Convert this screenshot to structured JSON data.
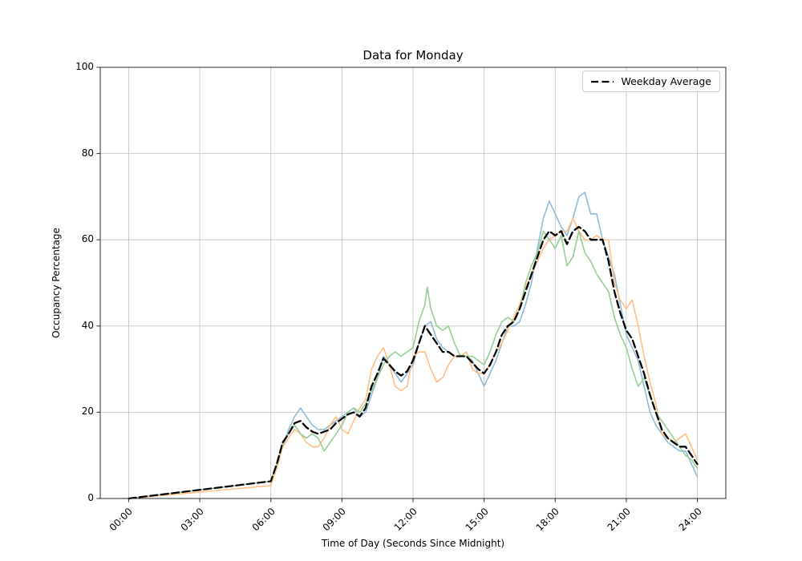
{
  "chart_data": {
    "type": "line",
    "title": "Data for Monday",
    "xlabel": "Time of Day (Seconds Since Midnight)",
    "ylabel": "Occupancy Percentage",
    "ylim": [
      0,
      100
    ],
    "x_unit": "hours",
    "xlim_hours": [
      0,
      24
    ],
    "grid": true,
    "legend_position": "upper right",
    "x_ticks": [
      {
        "hours": 0,
        "label": "00:00"
      },
      {
        "hours": 3,
        "label": "03:00"
      },
      {
        "hours": 6,
        "label": "06:00"
      },
      {
        "hours": 9,
        "label": "09:00"
      },
      {
        "hours": 12,
        "label": "12:00"
      },
      {
        "hours": 15,
        "label": "15:00"
      },
      {
        "hours": 18,
        "label": "18:00"
      },
      {
        "hours": 21,
        "label": "21:00"
      },
      {
        "hours": 24,
        "label": "24:00"
      }
    ],
    "y_ticks": [
      0,
      20,
      40,
      60,
      80,
      100
    ],
    "series": [
      {
        "name": "day-series-1",
        "color": "#8fbbd9",
        "width": 1.6,
        "dash": null,
        "in_legend": false,
        "points": [
          [
            0,
            0
          ],
          [
            6,
            4
          ],
          [
            6.25,
            8
          ],
          [
            6.5,
            12
          ],
          [
            6.75,
            16
          ],
          [
            7,
            19
          ],
          [
            7.25,
            21
          ],
          [
            7.5,
            19
          ],
          [
            7.75,
            17
          ],
          [
            8,
            16
          ],
          [
            8.25,
            16
          ],
          [
            8.5,
            17
          ],
          [
            8.75,
            18
          ],
          [
            9,
            19
          ],
          [
            9.25,
            20
          ],
          [
            9.5,
            21
          ],
          [
            9.75,
            19
          ],
          [
            10,
            20
          ],
          [
            10.25,
            24
          ],
          [
            10.5,
            28
          ],
          [
            10.75,
            33
          ],
          [
            11,
            31
          ],
          [
            11.25,
            29
          ],
          [
            11.5,
            27
          ],
          [
            11.75,
            29
          ],
          [
            12,
            31
          ],
          [
            12.25,
            36
          ],
          [
            12.5,
            40
          ],
          [
            12.75,
            41
          ],
          [
            13,
            37
          ],
          [
            13.25,
            35
          ],
          [
            13.5,
            34
          ],
          [
            13.75,
            33
          ],
          [
            14,
            33
          ],
          [
            14.25,
            33
          ],
          [
            14.5,
            32
          ],
          [
            14.75,
            29
          ],
          [
            15,
            26
          ],
          [
            15.25,
            29
          ],
          [
            15.5,
            32
          ],
          [
            15.75,
            36
          ],
          [
            16,
            40
          ],
          [
            16.25,
            40
          ],
          [
            16.5,
            41
          ],
          [
            16.75,
            45
          ],
          [
            17,
            50
          ],
          [
            17.25,
            58
          ],
          [
            17.5,
            65
          ],
          [
            17.75,
            69
          ],
          [
            18,
            66
          ],
          [
            18.25,
            63
          ],
          [
            18.5,
            61
          ],
          [
            18.75,
            65
          ],
          [
            19,
            70
          ],
          [
            19.25,
            71
          ],
          [
            19.5,
            66
          ],
          [
            19.75,
            66
          ],
          [
            20,
            60
          ],
          [
            20.25,
            56
          ],
          [
            20.5,
            52
          ],
          [
            20.75,
            45
          ],
          [
            21,
            38
          ],
          [
            21.25,
            35
          ],
          [
            21.5,
            32
          ],
          [
            21.75,
            26
          ],
          [
            22,
            20
          ],
          [
            22.25,
            17
          ],
          [
            22.5,
            15
          ],
          [
            22.75,
            13
          ],
          [
            23,
            12
          ],
          [
            23.25,
            11
          ],
          [
            23.5,
            11
          ],
          [
            23.75,
            8
          ],
          [
            24,
            5
          ]
        ]
      },
      {
        "name": "day-series-2",
        "color": "#ffbf86",
        "width": 1.6,
        "dash": null,
        "in_legend": false,
        "points": [
          [
            0,
            0
          ],
          [
            6,
            3
          ],
          [
            6.25,
            7
          ],
          [
            6.5,
            12
          ],
          [
            6.75,
            14
          ],
          [
            7,
            16
          ],
          [
            7.25,
            15
          ],
          [
            7.5,
            13
          ],
          [
            7.75,
            12
          ],
          [
            8,
            12
          ],
          [
            8.25,
            14
          ],
          [
            8.5,
            17
          ],
          [
            8.75,
            19
          ],
          [
            9,
            16
          ],
          [
            9.25,
            15
          ],
          [
            9.5,
            18
          ],
          [
            9.75,
            21
          ],
          [
            10,
            23
          ],
          [
            10.25,
            30
          ],
          [
            10.5,
            33
          ],
          [
            10.75,
            35
          ],
          [
            11,
            31
          ],
          [
            11.25,
            26
          ],
          [
            11.5,
            25
          ],
          [
            11.75,
            26
          ],
          [
            12,
            33
          ],
          [
            12.25,
            34
          ],
          [
            12.5,
            34
          ],
          [
            12.75,
            30
          ],
          [
            13,
            27
          ],
          [
            13.25,
            28
          ],
          [
            13.5,
            31
          ],
          [
            13.75,
            33
          ],
          [
            14,
            33
          ],
          [
            14.25,
            34
          ],
          [
            14.5,
            30
          ],
          [
            14.75,
            29
          ],
          [
            15,
            29
          ],
          [
            15.25,
            31
          ],
          [
            15.5,
            34
          ],
          [
            15.75,
            36
          ],
          [
            16,
            39
          ],
          [
            16.25,
            42
          ],
          [
            16.5,
            45
          ],
          [
            16.75,
            49
          ],
          [
            17,
            52
          ],
          [
            17.25,
            55
          ],
          [
            17.5,
            58
          ],
          [
            17.75,
            60
          ],
          [
            18,
            61
          ],
          [
            18.25,
            62
          ],
          [
            18.5,
            62
          ],
          [
            18.75,
            65
          ],
          [
            19,
            62
          ],
          [
            19.25,
            60
          ],
          [
            19.5,
            60
          ],
          [
            19.75,
            61
          ],
          [
            20,
            60
          ],
          [
            20.25,
            60
          ],
          [
            20.5,
            50
          ],
          [
            20.75,
            46
          ],
          [
            21,
            44
          ],
          [
            21.25,
            46
          ],
          [
            21.5,
            40
          ],
          [
            21.75,
            33
          ],
          [
            22,
            27
          ],
          [
            22.25,
            22
          ],
          [
            22.5,
            15
          ],
          [
            22.75,
            14
          ],
          [
            23,
            13
          ],
          [
            23.25,
            14
          ],
          [
            23.5,
            15
          ],
          [
            23.75,
            12
          ],
          [
            24,
            9
          ]
        ]
      },
      {
        "name": "day-series-3",
        "color": "#95cf95",
        "width": 1.6,
        "dash": null,
        "in_legend": false,
        "points": [
          [
            0,
            0
          ],
          [
            6,
            4
          ],
          [
            6.25,
            8
          ],
          [
            6.5,
            13
          ],
          [
            6.75,
            15
          ],
          [
            7,
            17
          ],
          [
            7.25,
            15
          ],
          [
            7.5,
            14
          ],
          [
            7.75,
            15
          ],
          [
            8,
            14
          ],
          [
            8.25,
            11
          ],
          [
            8.5,
            13
          ],
          [
            8.75,
            15
          ],
          [
            9,
            17
          ],
          [
            9.25,
            20
          ],
          [
            9.5,
            21
          ],
          [
            9.75,
            20
          ],
          [
            10,
            22
          ],
          [
            10.25,
            25
          ],
          [
            10.5,
            28
          ],
          [
            10.75,
            31
          ],
          [
            11,
            33
          ],
          [
            11.25,
            34
          ],
          [
            11.5,
            33
          ],
          [
            11.75,
            34
          ],
          [
            12,
            35
          ],
          [
            12.25,
            41
          ],
          [
            12.5,
            45
          ],
          [
            12.6,
            49
          ],
          [
            12.75,
            44
          ],
          [
            13,
            40
          ],
          [
            13.25,
            39
          ],
          [
            13.5,
            40
          ],
          [
            13.75,
            36
          ],
          [
            14,
            33
          ],
          [
            14.25,
            33
          ],
          [
            14.5,
            33
          ],
          [
            14.75,
            32
          ],
          [
            15,
            31
          ],
          [
            15.25,
            34
          ],
          [
            15.5,
            38
          ],
          [
            15.75,
            41
          ],
          [
            16,
            42
          ],
          [
            16.25,
            41
          ],
          [
            16.5,
            44
          ],
          [
            16.75,
            50
          ],
          [
            17,
            54
          ],
          [
            17.25,
            57
          ],
          [
            17.5,
            62
          ],
          [
            17.75,
            60
          ],
          [
            18,
            58
          ],
          [
            18.25,
            61
          ],
          [
            18.5,
            54
          ],
          [
            18.75,
            56
          ],
          [
            19,
            62
          ],
          [
            19.25,
            57
          ],
          [
            19.5,
            55
          ],
          [
            19.75,
            52
          ],
          [
            20,
            50
          ],
          [
            20.25,
            48
          ],
          [
            20.5,
            42
          ],
          [
            20.75,
            38
          ],
          [
            21,
            35
          ],
          [
            21.25,
            30
          ],
          [
            21.5,
            26
          ],
          [
            21.75,
            28
          ],
          [
            22,
            24
          ],
          [
            22.25,
            20
          ],
          [
            22.5,
            18
          ],
          [
            22.75,
            16
          ],
          [
            23,
            14
          ],
          [
            23.25,
            12
          ],
          [
            23.5,
            10
          ],
          [
            23.75,
            9
          ],
          [
            24,
            7
          ]
        ]
      },
      {
        "name": "Weekday Average",
        "color": "#000000",
        "width": 2.3,
        "dash": [
          9,
          4.5
        ],
        "in_legend": true,
        "points": [
          [
            0,
            0
          ],
          [
            6,
            4
          ],
          [
            6.25,
            8
          ],
          [
            6.5,
            13
          ],
          [
            6.75,
            15
          ],
          [
            7,
            17.5
          ],
          [
            7.25,
            18
          ],
          [
            7.5,
            16.5
          ],
          [
            7.75,
            15.5
          ],
          [
            8,
            15
          ],
          [
            8.25,
            15.5
          ],
          [
            8.5,
            16
          ],
          [
            8.75,
            17.5
          ],
          [
            9,
            18.5
          ],
          [
            9.25,
            19.5
          ],
          [
            9.5,
            20
          ],
          [
            9.75,
            19
          ],
          [
            10,
            21
          ],
          [
            10.25,
            26
          ],
          [
            10.5,
            29
          ],
          [
            10.75,
            32.5
          ],
          [
            11,
            31
          ],
          [
            11.25,
            29.5
          ],
          [
            11.5,
            28.5
          ],
          [
            11.75,
            29.5
          ],
          [
            12,
            32
          ],
          [
            12.25,
            36
          ],
          [
            12.5,
            40
          ],
          [
            12.75,
            38
          ],
          [
            13,
            36
          ],
          [
            13.25,
            34
          ],
          [
            13.5,
            34
          ],
          [
            13.75,
            33
          ],
          [
            14,
            33
          ],
          [
            14.25,
            33
          ],
          [
            14.5,
            31.5
          ],
          [
            14.75,
            30
          ],
          [
            15,
            29
          ],
          [
            15.25,
            31
          ],
          [
            15.5,
            34
          ],
          [
            15.75,
            38
          ],
          [
            16,
            40
          ],
          [
            16.25,
            41
          ],
          [
            16.5,
            44
          ],
          [
            16.75,
            48
          ],
          [
            17,
            52
          ],
          [
            17.25,
            56
          ],
          [
            17.5,
            60
          ],
          [
            17.75,
            62
          ],
          [
            18,
            61
          ],
          [
            18.25,
            62
          ],
          [
            18.5,
            59
          ],
          [
            18.75,
            62
          ],
          [
            19,
            63
          ],
          [
            19.25,
            62
          ],
          [
            19.5,
            60
          ],
          [
            19.75,
            60
          ],
          [
            20,
            60
          ],
          [
            20.25,
            55
          ],
          [
            20.5,
            48
          ],
          [
            20.75,
            43
          ],
          [
            21,
            39
          ],
          [
            21.25,
            37
          ],
          [
            21.5,
            33
          ],
          [
            21.75,
            29
          ],
          [
            22,
            24
          ],
          [
            22.25,
            20
          ],
          [
            22.5,
            16
          ],
          [
            22.75,
            14
          ],
          [
            23,
            13
          ],
          [
            23.25,
            12
          ],
          [
            23.5,
            12
          ],
          [
            23.75,
            10
          ],
          [
            24,
            8
          ]
        ]
      }
    ],
    "style": {
      "grid_color": "#c0c0c0",
      "spine_color": "#2a2a2a",
      "background": "#ffffff"
    }
  }
}
